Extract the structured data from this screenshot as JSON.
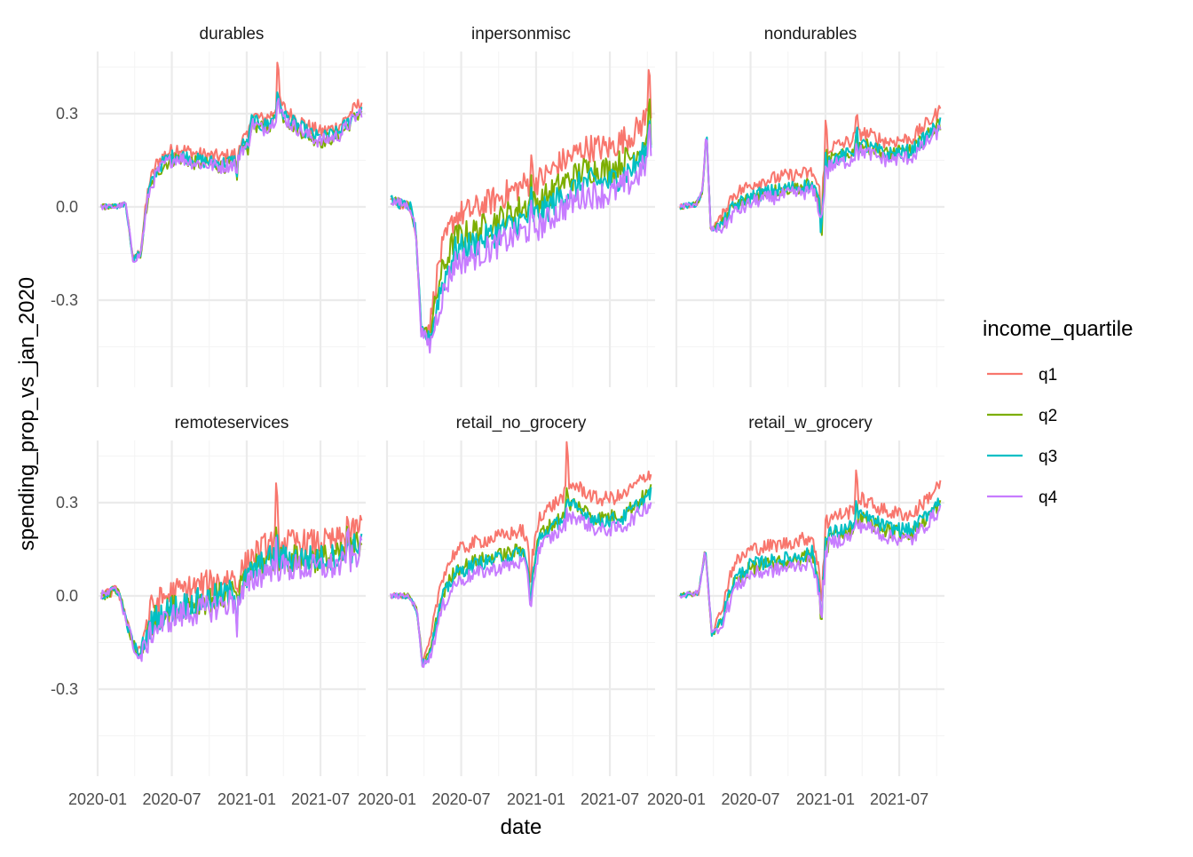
{
  "chart_data": {
    "type": "line",
    "facet_panels": [
      "durables",
      "inpersonmisc",
      "nondurables",
      "remoteservices",
      "retail_no_grocery",
      "retail_w_grocery"
    ],
    "xlabel": "date",
    "ylabel": "spending_prop_vs_jan_2020",
    "x_ticks": [
      "2020-01",
      "2020-07",
      "2021-01",
      "2021-07"
    ],
    "x_range": [
      "2020-01-01",
      "2021-10-20"
    ],
    "y_ticks": [
      -0.3,
      0.0,
      0.3
    ],
    "y_tick_labels": [
      "-0.3",
      "0.0",
      "0.3"
    ],
    "ylim": [
      -0.58,
      0.5
    ],
    "grid": true,
    "legend": {
      "title": "income_quartile",
      "position": "right",
      "entries": [
        {
          "name": "q1",
          "color": "#F8766D"
        },
        {
          "name": "q2",
          "color": "#7CAE00"
        },
        {
          "name": "q3",
          "color": "#00BFC4"
        },
        {
          "name": "q4",
          "color": "#C77CFF"
        }
      ]
    },
    "series_note_order": [
      "q1",
      "q2",
      "q3",
      "q4"
    ],
    "panels": [
      {
        "name": "durables",
        "keypoints": [
          [
            "2020-01-10",
            0.0
          ],
          [
            "2020-02-15",
            0.0
          ],
          [
            "2020-03-10",
            0.01
          ],
          [
            "2020-03-28",
            -0.17
          ],
          [
            "2020-04-15",
            -0.15
          ],
          [
            "2020-05-05",
            0.05
          ],
          [
            "2020-05-25",
            0.12
          ],
          [
            "2020-06-15",
            0.15
          ],
          [
            "2020-07-15",
            0.17
          ],
          [
            "2020-09-01",
            0.15
          ],
          [
            "2020-11-01",
            0.14
          ],
          [
            "2020-12-05",
            0.15
          ],
          [
            "2020-12-20",
            0.2
          ],
          [
            "2021-01-05",
            0.2
          ],
          [
            "2021-01-12",
            0.28
          ],
          [
            "2021-02-10",
            0.26
          ],
          [
            "2021-03-05",
            0.28
          ],
          [
            "2021-03-20",
            0.32
          ],
          [
            "2021-04-15",
            0.28
          ],
          [
            "2021-06-01",
            0.24
          ],
          [
            "2021-07-01",
            0.22
          ],
          [
            "2021-08-15",
            0.24
          ],
          [
            "2021-10-10",
            0.32
          ]
        ],
        "offsets": [
          0.02,
          -0.01,
          0.0,
          -0.01
        ],
        "spikes": [
          [
            "2020-12-08",
            [
              -0.08,
              -0.07,
              -0.07,
              -0.05
            ]
          ],
          [
            "2021-03-18",
            [
              0.2,
              0.1,
              0.09,
              0.07
            ]
          ]
        ]
      },
      {
        "name": "inpersonmisc",
        "keypoints": [
          [
            "2020-01-10",
            0.02
          ],
          [
            "2020-02-28",
            0.0
          ],
          [
            "2020-03-12",
            -0.08
          ],
          [
            "2020-03-25",
            -0.4
          ],
          [
            "2020-04-15",
            -0.42
          ],
          [
            "2020-05-10",
            -0.25
          ],
          [
            "2020-06-15",
            -0.12
          ],
          [
            "2020-08-01",
            -0.1
          ],
          [
            "2020-10-01",
            -0.06
          ],
          [
            "2020-12-01",
            -0.02
          ],
          [
            "2021-01-15",
            0.0
          ],
          [
            "2021-03-01",
            0.05
          ],
          [
            "2021-05-01",
            0.1
          ],
          [
            "2021-07-01",
            0.1
          ],
          [
            "2021-09-01",
            0.15
          ],
          [
            "2021-10-10",
            0.22
          ]
        ],
        "offsets": [
          0.09,
          0.02,
          -0.02,
          -0.06
        ],
        "spikes": [
          [
            "2020-12-20",
            [
              0.1,
              0.08,
              0.07,
              0.05
            ]
          ],
          [
            "2021-10-05",
            [
              0.24,
              0.16,
              0.14,
              0.14
            ]
          ]
        ]
      },
      {
        "name": "nondurables",
        "keypoints": [
          [
            "2020-01-10",
            0.0
          ],
          [
            "2020-02-20",
            0.01
          ],
          [
            "2020-03-05",
            0.05
          ],
          [
            "2020-03-15",
            0.25
          ],
          [
            "2020-03-25",
            -0.07
          ],
          [
            "2020-04-20",
            -0.06
          ],
          [
            "2020-05-20",
            0.0
          ],
          [
            "2020-07-15",
            0.04
          ],
          [
            "2020-10-01",
            0.06
          ],
          [
            "2020-12-01",
            0.07
          ],
          [
            "2020-12-20",
            0.0
          ],
          [
            "2021-01-10",
            0.15
          ],
          [
            "2021-03-01",
            0.17
          ],
          [
            "2021-04-01",
            0.2
          ],
          [
            "2021-06-01",
            0.17
          ],
          [
            "2021-08-01",
            0.18
          ],
          [
            "2021-10-10",
            0.27
          ]
        ],
        "offsets": [
          0.04,
          0.0,
          0.0,
          -0.02
        ],
        "spikes": [
          [
            "2020-12-22",
            [
              -0.1,
              -0.14,
              -0.12,
              -0.05
            ]
          ],
          [
            "2021-01-02",
            [
              0.2,
              0.12,
              0.1,
              0.08
            ]
          ],
          [
            "2021-03-18",
            [
              0.1,
              0.08,
              0.09,
              0.06
            ]
          ]
        ]
      },
      {
        "name": "remoteservices",
        "keypoints": [
          [
            "2020-01-10",
            0.0
          ],
          [
            "2020-02-20",
            0.02
          ],
          [
            "2020-03-20",
            -0.12
          ],
          [
            "2020-04-10",
            -0.2
          ],
          [
            "2020-05-15",
            -0.08
          ],
          [
            "2020-07-01",
            -0.04
          ],
          [
            "2020-09-01",
            -0.02
          ],
          [
            "2020-11-01",
            0.0
          ],
          [
            "2020-12-15",
            0.02
          ],
          [
            "2021-01-15",
            0.08
          ],
          [
            "2021-03-01",
            0.12
          ],
          [
            "2021-04-15",
            0.12
          ],
          [
            "2021-07-01",
            0.12
          ],
          [
            "2021-09-01",
            0.13
          ],
          [
            "2021-10-10",
            0.18
          ]
        ],
        "offsets": [
          0.05,
          0.0,
          0.0,
          -0.03
        ],
        "spikes": [
          [
            "2021-03-15",
            [
              0.22,
              0.1,
              0.08,
              0.08
            ]
          ],
          [
            "2021-09-05",
            [
              0.1,
              0.09,
              0.09,
              0.18
            ]
          ],
          [
            "2020-12-08",
            [
              -0.05,
              -0.06,
              -0.1,
              -0.08
            ]
          ]
        ]
      },
      {
        "name": "retail_no_grocery",
        "keypoints": [
          [
            "2020-01-10",
            0.0
          ],
          [
            "2020-02-25",
            0.0
          ],
          [
            "2020-03-15",
            -0.05
          ],
          [
            "2020-03-28",
            -0.22
          ],
          [
            "2020-04-15",
            -0.18
          ],
          [
            "2020-05-15",
            0.0
          ],
          [
            "2020-06-15",
            0.08
          ],
          [
            "2020-08-01",
            0.11
          ],
          [
            "2020-10-01",
            0.13
          ],
          [
            "2020-12-01",
            0.15
          ],
          [
            "2020-12-20",
            0.05
          ],
          [
            "2021-01-10",
            0.2
          ],
          [
            "2021-03-01",
            0.25
          ],
          [
            "2021-04-01",
            0.3
          ],
          [
            "2021-06-01",
            0.25
          ],
          [
            "2021-08-01",
            0.26
          ],
          [
            "2021-10-10",
            0.34
          ]
        ],
        "offsets": [
          0.06,
          0.0,
          -0.01,
          -0.04
        ],
        "spikes": [
          [
            "2020-12-18",
            [
              -0.12,
              -0.12,
              -0.1,
              -0.08
            ]
          ],
          [
            "2021-03-18",
            [
              0.2,
              0.08,
              0.06,
              0.04
            ]
          ]
        ]
      },
      {
        "name": "retail_w_grocery",
        "keypoints": [
          [
            "2020-01-10",
            0.0
          ],
          [
            "2020-02-25",
            0.01
          ],
          [
            "2020-03-12",
            0.15
          ],
          [
            "2020-03-28",
            -0.12
          ],
          [
            "2020-04-20",
            -0.08
          ],
          [
            "2020-05-20",
            0.05
          ],
          [
            "2020-07-01",
            0.1
          ],
          [
            "2020-10-01",
            0.12
          ],
          [
            "2020-12-01",
            0.14
          ],
          [
            "2020-12-20",
            0.0
          ],
          [
            "2021-01-10",
            0.2
          ],
          [
            "2021-03-01",
            0.22
          ],
          [
            "2021-04-01",
            0.26
          ],
          [
            "2021-06-01",
            0.22
          ],
          [
            "2021-08-01",
            0.21
          ],
          [
            "2021-10-10",
            0.31
          ]
        ],
        "offsets": [
          0.05,
          -0.01,
          0.0,
          -0.03
        ],
        "spikes": [
          [
            "2020-12-22",
            [
              -0.12,
              -0.12,
              -0.1,
              -0.06
            ]
          ],
          [
            "2021-01-02",
            [
              0.12,
              0.1,
              0.09,
              0.07
            ]
          ],
          [
            "2021-03-18",
            [
              0.18,
              0.08,
              0.07,
              0.05
            ]
          ]
        ]
      }
    ]
  }
}
